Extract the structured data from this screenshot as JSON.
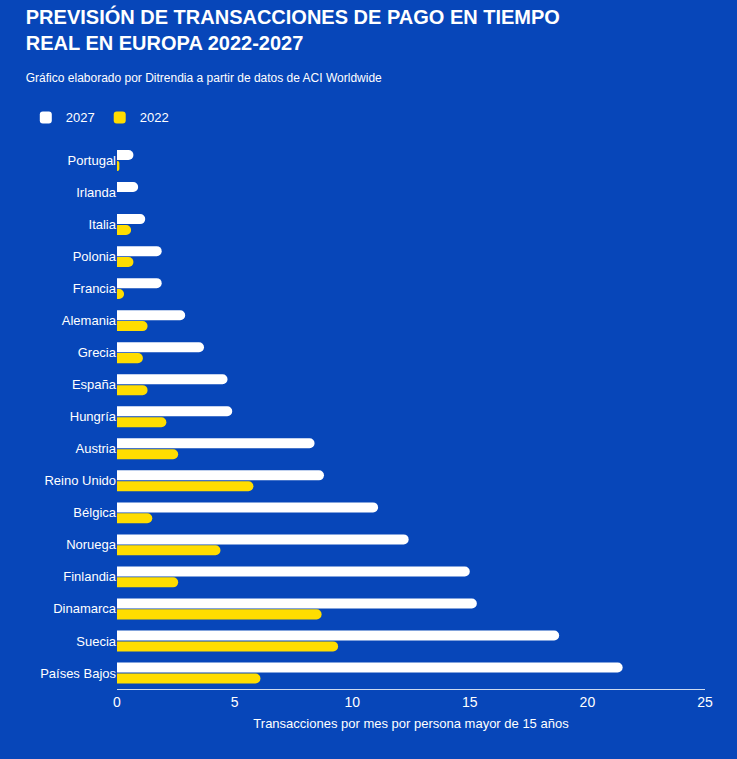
{
  "chart_data": {
    "type": "bar",
    "orientation": "horizontal",
    "title": "PREVISIÓN DE TRANSACCIONES DE PAGO EN TIEMPO REAL EN EUROPA 2022-2027",
    "subtitle": "Gráfico elaborado por Ditrendia a partir de datos de ACI Worldwide",
    "x_label": "Transacciones por mes por persona mayor de 15 años",
    "categories": [
      "Portugal",
      "Irlanda",
      "Italia",
      "Polonia",
      "Francia",
      "Alemania",
      "Grecia",
      "España",
      "Hungría",
      "Austria",
      "Reino Unido",
      "Bélgica",
      "Noruega",
      "Finlandia",
      "Dinamarca",
      "Suecia",
      "Países Bajos"
    ],
    "series": [
      {
        "name": "2027",
        "color": "#ffffff",
        "values": [
          0.7,
          0.9,
          1.2,
          1.9,
          1.9,
          2.9,
          3.7,
          4.7,
          4.9,
          8.4,
          8.8,
          11.1,
          12.4,
          15.0,
          15.3,
          18.8,
          21.5
        ]
      },
      {
        "name": "2022",
        "color": "#ffdd00",
        "values": [
          0.1,
          null,
          0.6,
          0.7,
          0.3,
          1.3,
          1.1,
          1.3,
          2.1,
          2.6,
          5.8,
          1.5,
          4.4,
          2.6,
          8.7,
          9.4,
          6.1
        ]
      }
    ],
    "xlim": [
      0,
      25
    ],
    "xticks": [
      0,
      5,
      10,
      15,
      20,
      25
    ],
    "grid": false,
    "legend": "top left"
  }
}
